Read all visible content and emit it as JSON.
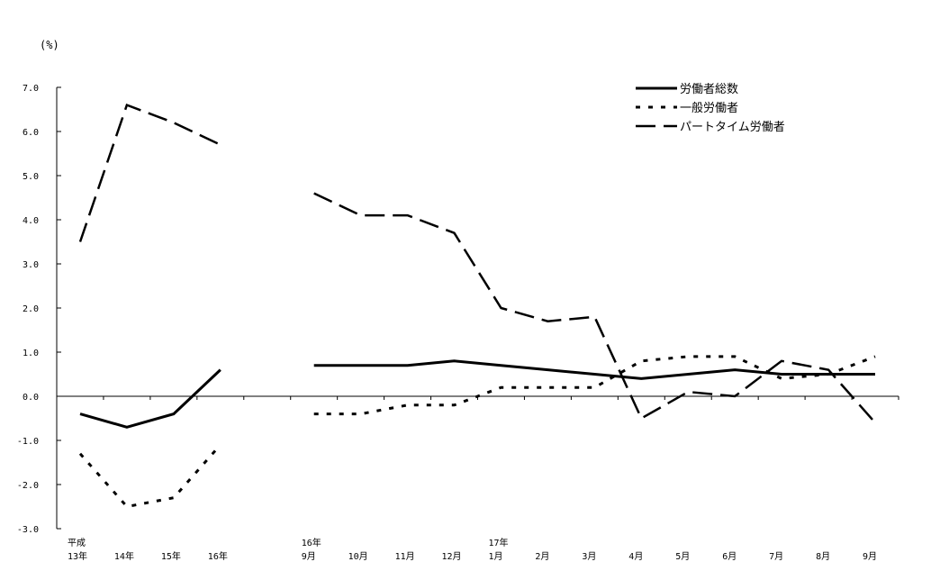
{
  "chart_data": {
    "type": "line",
    "ylabel": "(%)",
    "ylim": [
      -3.0,
      7.0
    ],
    "yticks": [
      "7.0",
      "6.0",
      "5.0",
      "4.0",
      "3.0",
      "2.0",
      "1.0",
      "0.0",
      "-1.0",
      "-2.0",
      "-3.0"
    ],
    "grid": false,
    "legend_position": "top-right",
    "categories": [
      {
        "top": "平成",
        "bottom": "13年"
      },
      {
        "top": "",
        "bottom": "14年"
      },
      {
        "top": "",
        "bottom": "15年"
      },
      {
        "top": "",
        "bottom": "16年"
      },
      null,
      {
        "top": "16年",
        "bottom": "9月"
      },
      {
        "top": "",
        "bottom": "10月"
      },
      {
        "top": "",
        "bottom": "11月"
      },
      {
        "top": "",
        "bottom": "12月"
      },
      {
        "top": "17年",
        "bottom": "1月"
      },
      {
        "top": "",
        "bottom": "2月"
      },
      {
        "top": "",
        "bottom": "3月"
      },
      {
        "top": "",
        "bottom": "4月"
      },
      {
        "top": "",
        "bottom": "5月"
      },
      {
        "top": "",
        "bottom": "6月"
      },
      {
        "top": "",
        "bottom": "7月"
      },
      {
        "top": "",
        "bottom": "8月"
      },
      {
        "top": "",
        "bottom": "9月"
      }
    ],
    "series": [
      {
        "name": "労働者総数",
        "style": "solid",
        "values": [
          -0.4,
          -0.7,
          -0.4,
          0.6,
          null,
          0.7,
          0.7,
          0.7,
          0.8,
          0.7,
          0.6,
          0.5,
          0.4,
          0.5,
          0.6,
          0.5,
          0.5,
          0.5
        ]
      },
      {
        "name": "一般労働者",
        "style": "dotted",
        "values": [
          -1.3,
          -2.5,
          -2.3,
          -1.1,
          null,
          -0.4,
          -0.4,
          -0.2,
          -0.2,
          0.2,
          0.2,
          0.2,
          0.8,
          0.9,
          0.9,
          0.4,
          0.5,
          0.9
        ]
      },
      {
        "name": "パートタイム労働者",
        "style": "dashed",
        "values": [
          3.5,
          6.6,
          6.2,
          5.7,
          null,
          4.6,
          4.1,
          4.1,
          3.7,
          2.0,
          1.7,
          1.8,
          -0.5,
          0.1,
          0.0,
          0.8,
          0.6,
          -0.6
        ]
      }
    ],
    "colors": {
      "line": "#000000",
      "background": "#ffffff"
    }
  }
}
